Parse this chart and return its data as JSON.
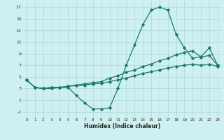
{
  "xlabel": "Humidex (Indice chaleur)",
  "background_color": "#cff0f0",
  "grid_color": "#aad8d8",
  "line_color": "#1a7a6e",
  "xlim": [
    -0.5,
    23.5
  ],
  "ylim": [
    -2,
    18
  ],
  "yticks": [
    -1,
    1,
    3,
    5,
    7,
    9,
    11,
    13,
    15,
    17
  ],
  "xticks": [
    0,
    1,
    2,
    3,
    4,
    5,
    6,
    7,
    8,
    9,
    10,
    11,
    12,
    13,
    14,
    15,
    16,
    17,
    18,
    19,
    20,
    21,
    22,
    23
  ],
  "series1_x": [
    0,
    1,
    2,
    3,
    4,
    5,
    6,
    7,
    8,
    9,
    10,
    11,
    12,
    13,
    14,
    15,
    16,
    17,
    18,
    19,
    20,
    21,
    22,
    23
  ],
  "series1_y": [
    4.5,
    3.2,
    3.0,
    3.0,
    3.2,
    3.2,
    1.8,
    0.5,
    -0.5,
    -0.5,
    -0.3,
    3.0,
    7.0,
    10.5,
    14.0,
    16.5,
    17.0,
    16.5,
    12.3,
    10.0,
    8.2,
    8.5,
    10.0,
    7.0
  ],
  "series2_x": [
    0,
    1,
    2,
    3,
    4,
    5,
    6,
    7,
    8,
    9,
    10,
    11,
    12,
    13,
    14,
    15,
    16,
    17,
    18,
    19,
    20,
    21,
    22,
    23
  ],
  "series2_y": [
    4.5,
    3.2,
    3.0,
    3.2,
    3.2,
    3.4,
    3.6,
    3.8,
    4.0,
    4.2,
    4.8,
    5.2,
    5.8,
    6.2,
    6.8,
    7.2,
    7.8,
    8.2,
    8.8,
    9.2,
    9.5,
    8.4,
    8.7,
    7.0
  ],
  "series3_x": [
    0,
    1,
    2,
    3,
    4,
    5,
    6,
    7,
    8,
    9,
    10,
    11,
    12,
    13,
    14,
    15,
    16,
    17,
    18,
    19,
    20,
    21,
    22,
    23
  ],
  "series3_y": [
    4.5,
    3.2,
    3.0,
    3.2,
    3.2,
    3.4,
    3.5,
    3.6,
    3.8,
    3.9,
    4.2,
    4.5,
    4.8,
    5.2,
    5.6,
    5.9,
    6.2,
    6.5,
    6.8,
    7.0,
    7.2,
    7.0,
    7.2,
    6.8
  ]
}
